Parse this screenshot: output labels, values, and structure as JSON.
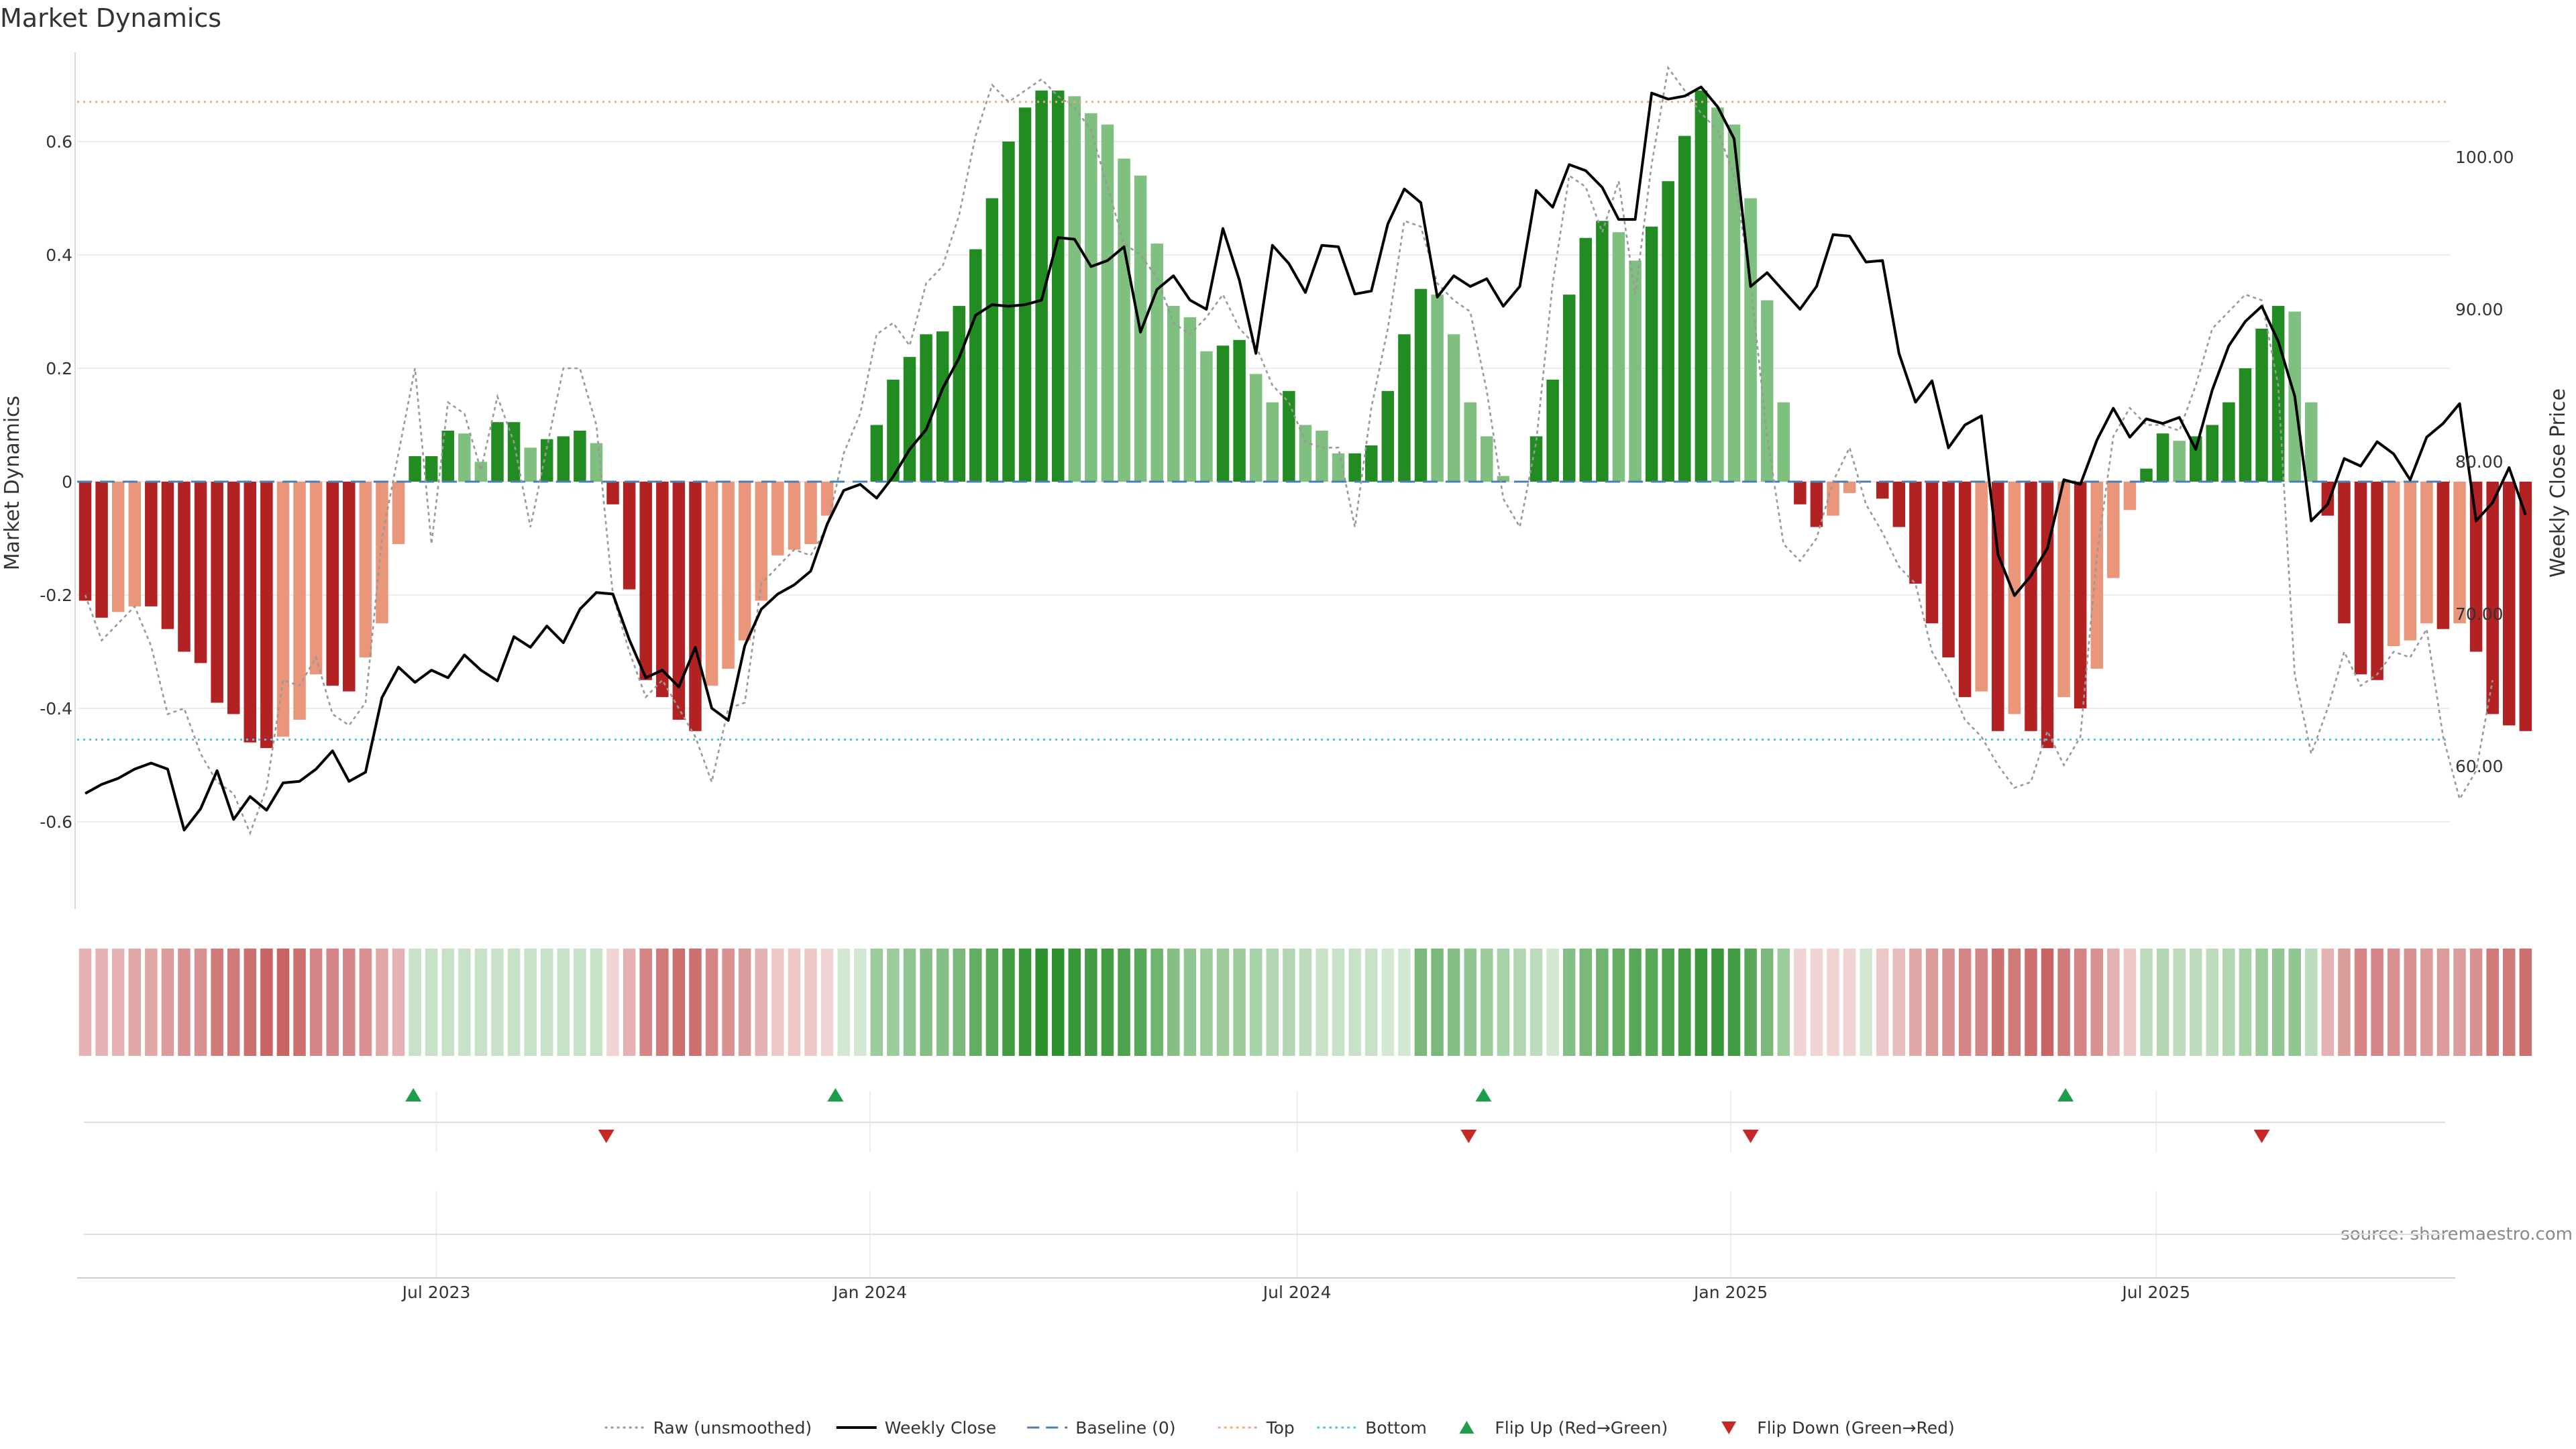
{
  "chart_data": {
    "type": "bar",
    "title": "Market Dynamics",
    "ylabel": "Market Dynamics",
    "y2label": "Weekly Close Price",
    "ylim": [
      -0.75,
      0.76
    ],
    "y2lim": [
      52.6,
      107.2
    ],
    "yticks": [
      "0.6",
      "0.4",
      "0.2",
      "0",
      "-0.2",
      "-0.4",
      "-0.6"
    ],
    "ytick_values": [
      0.6,
      0.4,
      0.2,
      0,
      -0.2,
      -0.4,
      -0.6
    ],
    "y2ticks": [
      "100.00",
      "90.00",
      "80.00",
      "70.00",
      "60.00"
    ],
    "y2tick_values": [
      100,
      90,
      80,
      70,
      60
    ],
    "xticks": [
      "Jul 2023",
      "Jan 2024",
      "Jul 2024",
      "Jan 2025",
      "Jul 2025"
    ],
    "xtick_index": [
      21.3,
      47.6,
      73.5,
      99.8,
      125.6
    ],
    "top_line": 0.67,
    "bottom_line": -0.455,
    "grid": true,
    "legend_placement": "bottom-center",
    "source": "source: sharemaestro.com",
    "colors": {
      "strong_green": "#228b22",
      "light_green": "#7fbf7f",
      "strong_red": "#b22222",
      "light_red": "#e9967a",
      "raw": "#999999",
      "close": "#000000",
      "baseline": "#4a7fb0",
      "top": "#f4a582",
      "bottom": "#5bc0de",
      "flip_up": "#1e9e4a",
      "flip_down": "#c62828"
    },
    "bars": [
      -0.21,
      -0.24,
      -0.23,
      -0.22,
      -0.22,
      -0.26,
      -0.3,
      -0.32,
      -0.39,
      -0.41,
      -0.46,
      -0.47,
      -0.45,
      -0.42,
      -0.34,
      -0.36,
      -0.37,
      -0.31,
      -0.25,
      -0.11,
      0.045,
      0.045,
      0.09,
      0.085,
      0.035,
      0.105,
      0.105,
      0.06,
      0.075,
      0.08,
      0.09,
      0.068,
      -0.04,
      -0.19,
      -0.35,
      -0.38,
      -0.42,
      -0.44,
      -0.36,
      -0.33,
      -0.28,
      -0.21,
      -0.13,
      -0.12,
      -0.11,
      -0.06,
      0,
      0,
      0.1,
      0.18,
      0.22,
      0.26,
      0.265,
      0.31,
      0.41,
      0.5,
      0.6,
      0.66,
      0.69,
      0.69,
      0.68,
      0.65,
      0.63,
      0.57,
      0.54,
      0.42,
      0.31,
      0.29,
      0.23,
      0.24,
      0.25,
      0.19,
      0.14,
      0.16,
      0.1,
      0.09,
      0.05,
      0.05,
      0.064,
      0.16,
      0.26,
      0.34,
      0.33,
      0.26,
      0.14,
      0.08,
      0.01,
      0,
      0.08,
      0.18,
      0.33,
      0.43,
      0.46,
      0.44,
      0.39,
      0.45,
      0.53,
      0.61,
      0.69,
      0.66,
      0.63,
      0.5,
      0.32,
      0.14,
      -0.04,
      -0.08,
      -0.06,
      -0.02,
      0,
      -0.03,
      -0.08,
      -0.18,
      -0.25,
      -0.31,
      -0.38,
      -0.37,
      -0.44,
      -0.41,
      -0.44,
      -0.47,
      -0.38,
      -0.4,
      -0.33,
      -0.17,
      -0.05,
      0.023,
      0.085,
      0.072,
      0.08,
      0.1,
      0.14,
      0.2,
      0.27,
      0.31,
      0.3,
      0.14,
      -0.06,
      -0.25,
      -0.34,
      -0.35,
      -0.29,
      -0.28,
      -0.25,
      -0.26,
      -0.25,
      -0.3,
      -0.41,
      -0.43,
      -0.44
    ],
    "raw": [
      -0.2,
      -0.28,
      -0.25,
      -0.22,
      -0.29,
      -0.41,
      -0.4,
      -0.48,
      -0.53,
      -0.55,
      -0.62,
      -0.54,
      -0.35,
      -0.36,
      -0.31,
      -0.41,
      -0.43,
      -0.39,
      -0.1,
      0.05,
      0.2,
      -0.11,
      0.14,
      0.12,
      0.02,
      0.15,
      0.07,
      -0.08,
      0.06,
      0.2,
      0.2,
      0.1,
      -0.2,
      -0.3,
      -0.38,
      -0.35,
      -0.4,
      -0.45,
      -0.53,
      -0.4,
      -0.39,
      -0.18,
      -0.15,
      -0.12,
      -0.13,
      -0.08,
      0.05,
      0.12,
      0.26,
      0.28,
      0.24,
      0.35,
      0.38,
      0.47,
      0.61,
      0.7,
      0.67,
      0.69,
      0.71,
      0.68,
      0.66,
      0.62,
      0.52,
      0.42,
      0.4,
      0.36,
      0.28,
      0.26,
      0.29,
      0.33,
      0.27,
      0.24,
      0.17,
      0.14,
      0.07,
      0.06,
      0.06,
      -0.08,
      0.13,
      0.27,
      0.46,
      0.45,
      0.35,
      0.32,
      0.3,
      0.16,
      -0.03,
      -0.08,
      0.07,
      0.35,
      0.54,
      0.52,
      0.44,
      0.53,
      0.33,
      0.56,
      0.73,
      0.69,
      0.65,
      0.62,
      0.54,
      0.35,
      0.08,
      -0.11,
      -0.14,
      -0.1,
      0.0,
      0.06,
      -0.04,
      -0.09,
      -0.15,
      -0.18,
      -0.3,
      -0.35,
      -0.42,
      -0.45,
      -0.5,
      -0.54,
      -0.53,
      -0.44,
      -0.5,
      -0.45,
      -0.13,
      0.08,
      0.13,
      0.1,
      0.1,
      0.09,
      0.17,
      0.27,
      0.3,
      0.33,
      0.32,
      0.17,
      -0.34,
      -0.48,
      -0.4,
      -0.3,
      -0.36,
      -0.34,
      -0.3,
      -0.31,
      -0.26,
      -0.45,
      -0.56,
      -0.51,
      -0.35
    ],
    "close": [
      58.2,
      58.8,
      59.2,
      59.8,
      60.2,
      59.8,
      55.8,
      57.2,
      59.7,
      56.5,
      58.0,
      57.1,
      58.9,
      59.0,
      59.8,
      61.0,
      59.0,
      59.6,
      64.5,
      66.5,
      65.5,
      66.3,
      65.8,
      67.3,
      66.3,
      65.6,
      68.5,
      67.8,
      69.2,
      68.1,
      70.3,
      71.4,
      71.3,
      68.3,
      65.8,
      66.3,
      65.2,
      67.8,
      63.8,
      63.0,
      67.9,
      70.3,
      71.3,
      71.9,
      72.8,
      75.9,
      78.1,
      78.5,
      77.6,
      79.0,
      80.8,
      82.1,
      84.8,
      86.8,
      89.6,
      90.3,
      90.2,
      90.3,
      90.6,
      94.7,
      94.6,
      92.8,
      93.2,
      94.1,
      88.5,
      91.3,
      92.2,
      90.6,
      90.0,
      95.3,
      91.9,
      87.1,
      94.2,
      93.0,
      91.1,
      94.2,
      94.1,
      91.0,
      91.2,
      95.6,
      97.9,
      97.0,
      90.8,
      92.2,
      91.5,
      92.0,
      90.2,
      91.5,
      97.8,
      96.7,
      99.5,
      99.1,
      98.0,
      95.9,
      95.9,
      104.2,
      103.8,
      104.0,
      104.6,
      103.3,
      101.2,
      91.5,
      92.4,
      91.2,
      90.0,
      91.5,
      94.9,
      94.8,
      93.1,
      93.2,
      87.1,
      83.9,
      85.3,
      80.9,
      82.4,
      83.0,
      73.9,
      71.2,
      72.5,
      74.3,
      78.8,
      78.5,
      81.4,
      83.5,
      81.6,
      82.8,
      82.5,
      82.9,
      80.8,
      84.7,
      87.6,
      89.2,
      90.2,
      87.9,
      84.3,
      76.1,
      77.2,
      80.2,
      79.7,
      81.3,
      80.5,
      78.8,
      81.6,
      82.5,
      83.8,
      76.1,
      77.3,
      79.6,
      76.5
    ],
    "heatmap_levels": [
      0.35,
      0.35,
      0.35,
      0.4,
      0.4,
      0.45,
      0.5,
      0.5,
      0.6,
      0.6,
      0.65,
      0.7,
      0.7,
      0.65,
      0.55,
      0.55,
      0.55,
      0.5,
      0.4,
      0.35,
      0.25,
      0.25,
      0.25,
      0.25,
      0.25,
      0.25,
      0.25,
      0.25,
      0.25,
      0.25,
      0.25,
      0.25,
      0.2,
      0.35,
      0.55,
      0.6,
      0.65,
      0.65,
      0.55,
      0.5,
      0.45,
      0.35,
      0.25,
      0.25,
      0.25,
      0.2,
      0.2,
      0.2,
      0.45,
      0.45,
      0.5,
      0.55,
      0.55,
      0.6,
      0.7,
      0.75,
      0.85,
      0.9,
      0.95,
      0.95,
      0.9,
      0.85,
      0.85,
      0.8,
      0.75,
      0.65,
      0.55,
      0.5,
      0.45,
      0.45,
      0.45,
      0.4,
      0.35,
      0.35,
      0.3,
      0.25,
      0.25,
      0.25,
      0.25,
      0.2,
      0.2,
      0.6,
      0.6,
      0.55,
      0.5,
      0.45,
      0.4,
      0.35,
      0.3,
      0.2,
      0.55,
      0.6,
      0.65,
      0.7,
      0.75,
      0.75,
      0.8,
      0.85,
      0.9,
      0.9,
      0.85,
      0.75,
      0.6,
      0.45,
      0.2,
      0.2,
      0.2,
      0.2,
      0.2,
      0.25,
      0.3,
      0.4,
      0.45,
      0.5,
      0.55,
      0.55,
      0.65,
      0.6,
      0.65,
      0.7,
      0.6,
      0.55,
      0.5,
      0.35,
      0.25,
      0.3,
      0.35,
      0.3,
      0.3,
      0.3,
      0.35,
      0.4,
      0.45,
      0.5,
      0.5,
      0.3,
      0.35,
      0.45,
      0.55,
      0.55,
      0.5,
      0.5,
      0.45,
      0.45,
      0.45,
      0.5,
      0.6,
      0.6,
      0.65
    ],
    "flips_up": [
      19.9,
      45.5,
      84.8,
      120.1
    ],
    "flips_down": [
      31.6,
      83.9,
      101.0,
      132.0
    ],
    "legend": [
      {
        "label": "Raw (unsmoothed)",
        "kind": "dotted-line",
        "color": "#999999"
      },
      {
        "label": "Weekly Close",
        "kind": "solid-line",
        "color": "#000000"
      },
      {
        "label": "Baseline (0)",
        "kind": "dashed-line",
        "color": "#4a7fb0"
      },
      {
        "label": "Top",
        "kind": "dotted-line",
        "color": "#f4a582"
      },
      {
        "label": "Bottom",
        "kind": "dotted-line",
        "color": "#5bc0de"
      },
      {
        "label": "Flip Up (Red→Green)",
        "kind": "triangle-up",
        "color": "#1e9e4a"
      },
      {
        "label": "Flip Down (Green→Red)",
        "kind": "triangle-down",
        "color": "#c62828"
      }
    ]
  }
}
